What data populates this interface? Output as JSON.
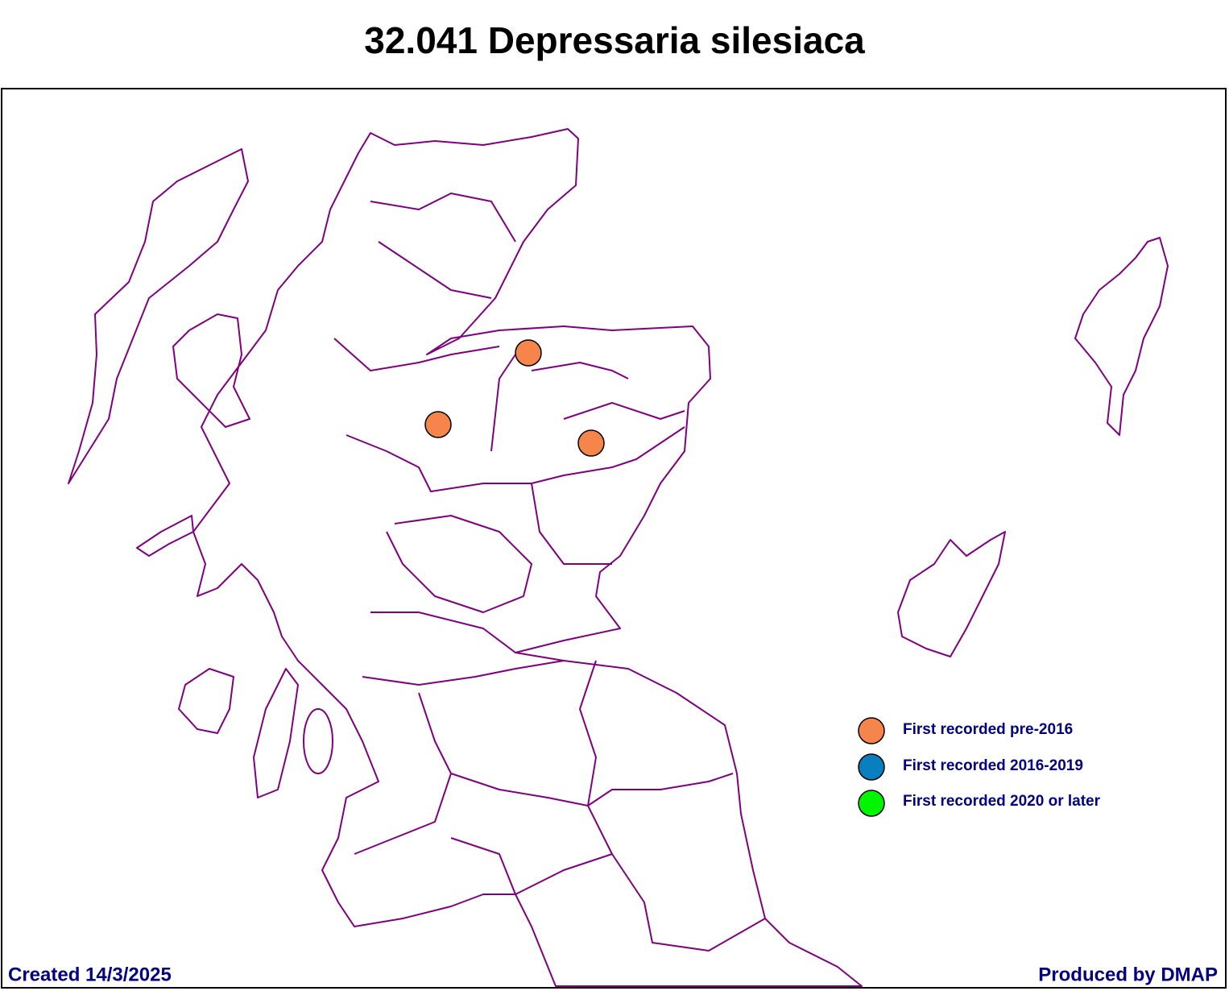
{
  "title": "32.041 Depressaria silesiaca",
  "legend": [
    "First recorded pre-2016",
    "First recorded 2016-2019",
    "First recorded 2020 or later"
  ],
  "footer": {
    "created": "Created 14/3/2025",
    "producer": "Produced by DMAP"
  }
}
